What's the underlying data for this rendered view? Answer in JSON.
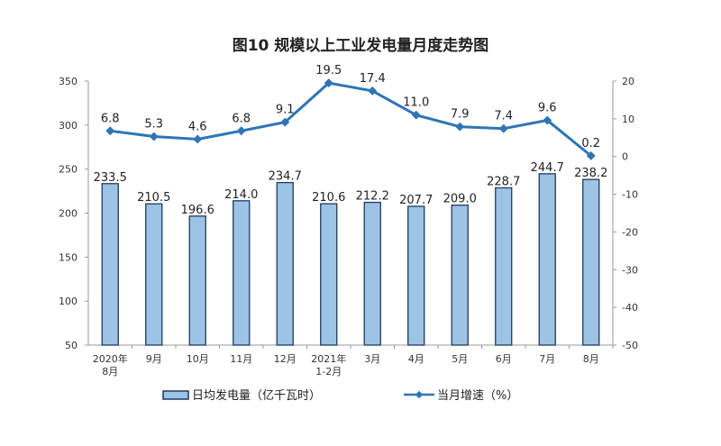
{
  "chart_data": {
    "type": "bar+line",
    "title": "图10  规模以上工业发电量月度走势图",
    "categories": [
      [
        "2020年",
        "8月"
      ],
      [
        "9月"
      ],
      [
        "10月"
      ],
      [
        "11月"
      ],
      [
        "12月"
      ],
      [
        "2021年",
        "1-2月"
      ],
      [
        "3月"
      ],
      [
        "4月"
      ],
      [
        "5月"
      ],
      [
        "6月"
      ],
      [
        "7月"
      ],
      [
        "8月"
      ]
    ],
    "series": [
      {
        "name": "日均发电量（亿千瓦时）",
        "type": "bar",
        "axis": "left",
        "color": "#9dc3e6",
        "border": "#1f3a5a",
        "values": [
          233.5,
          210.5,
          196.6,
          214.0,
          234.7,
          210.6,
          212.2,
          207.7,
          209.0,
          228.7,
          244.7,
          238.2
        ]
      },
      {
        "name": "当月增速（%）",
        "type": "line",
        "axis": "right",
        "color": "#2e75b6",
        "values": [
          6.8,
          5.3,
          4.6,
          6.8,
          9.1,
          19.5,
          17.4,
          11.0,
          7.9,
          7.4,
          9.6,
          0.2
        ]
      }
    ],
    "left_axis": {
      "min": 50,
      "max": 350,
      "ticks": [
        50,
        100,
        150,
        200,
        250,
        300,
        350
      ]
    },
    "right_axis": {
      "min": -50,
      "max": 20,
      "ticks": [
        -50,
        -40,
        -30,
        -20,
        -10,
        0,
        10,
        20
      ]
    },
    "legend": "bottom",
    "grid": false
  }
}
